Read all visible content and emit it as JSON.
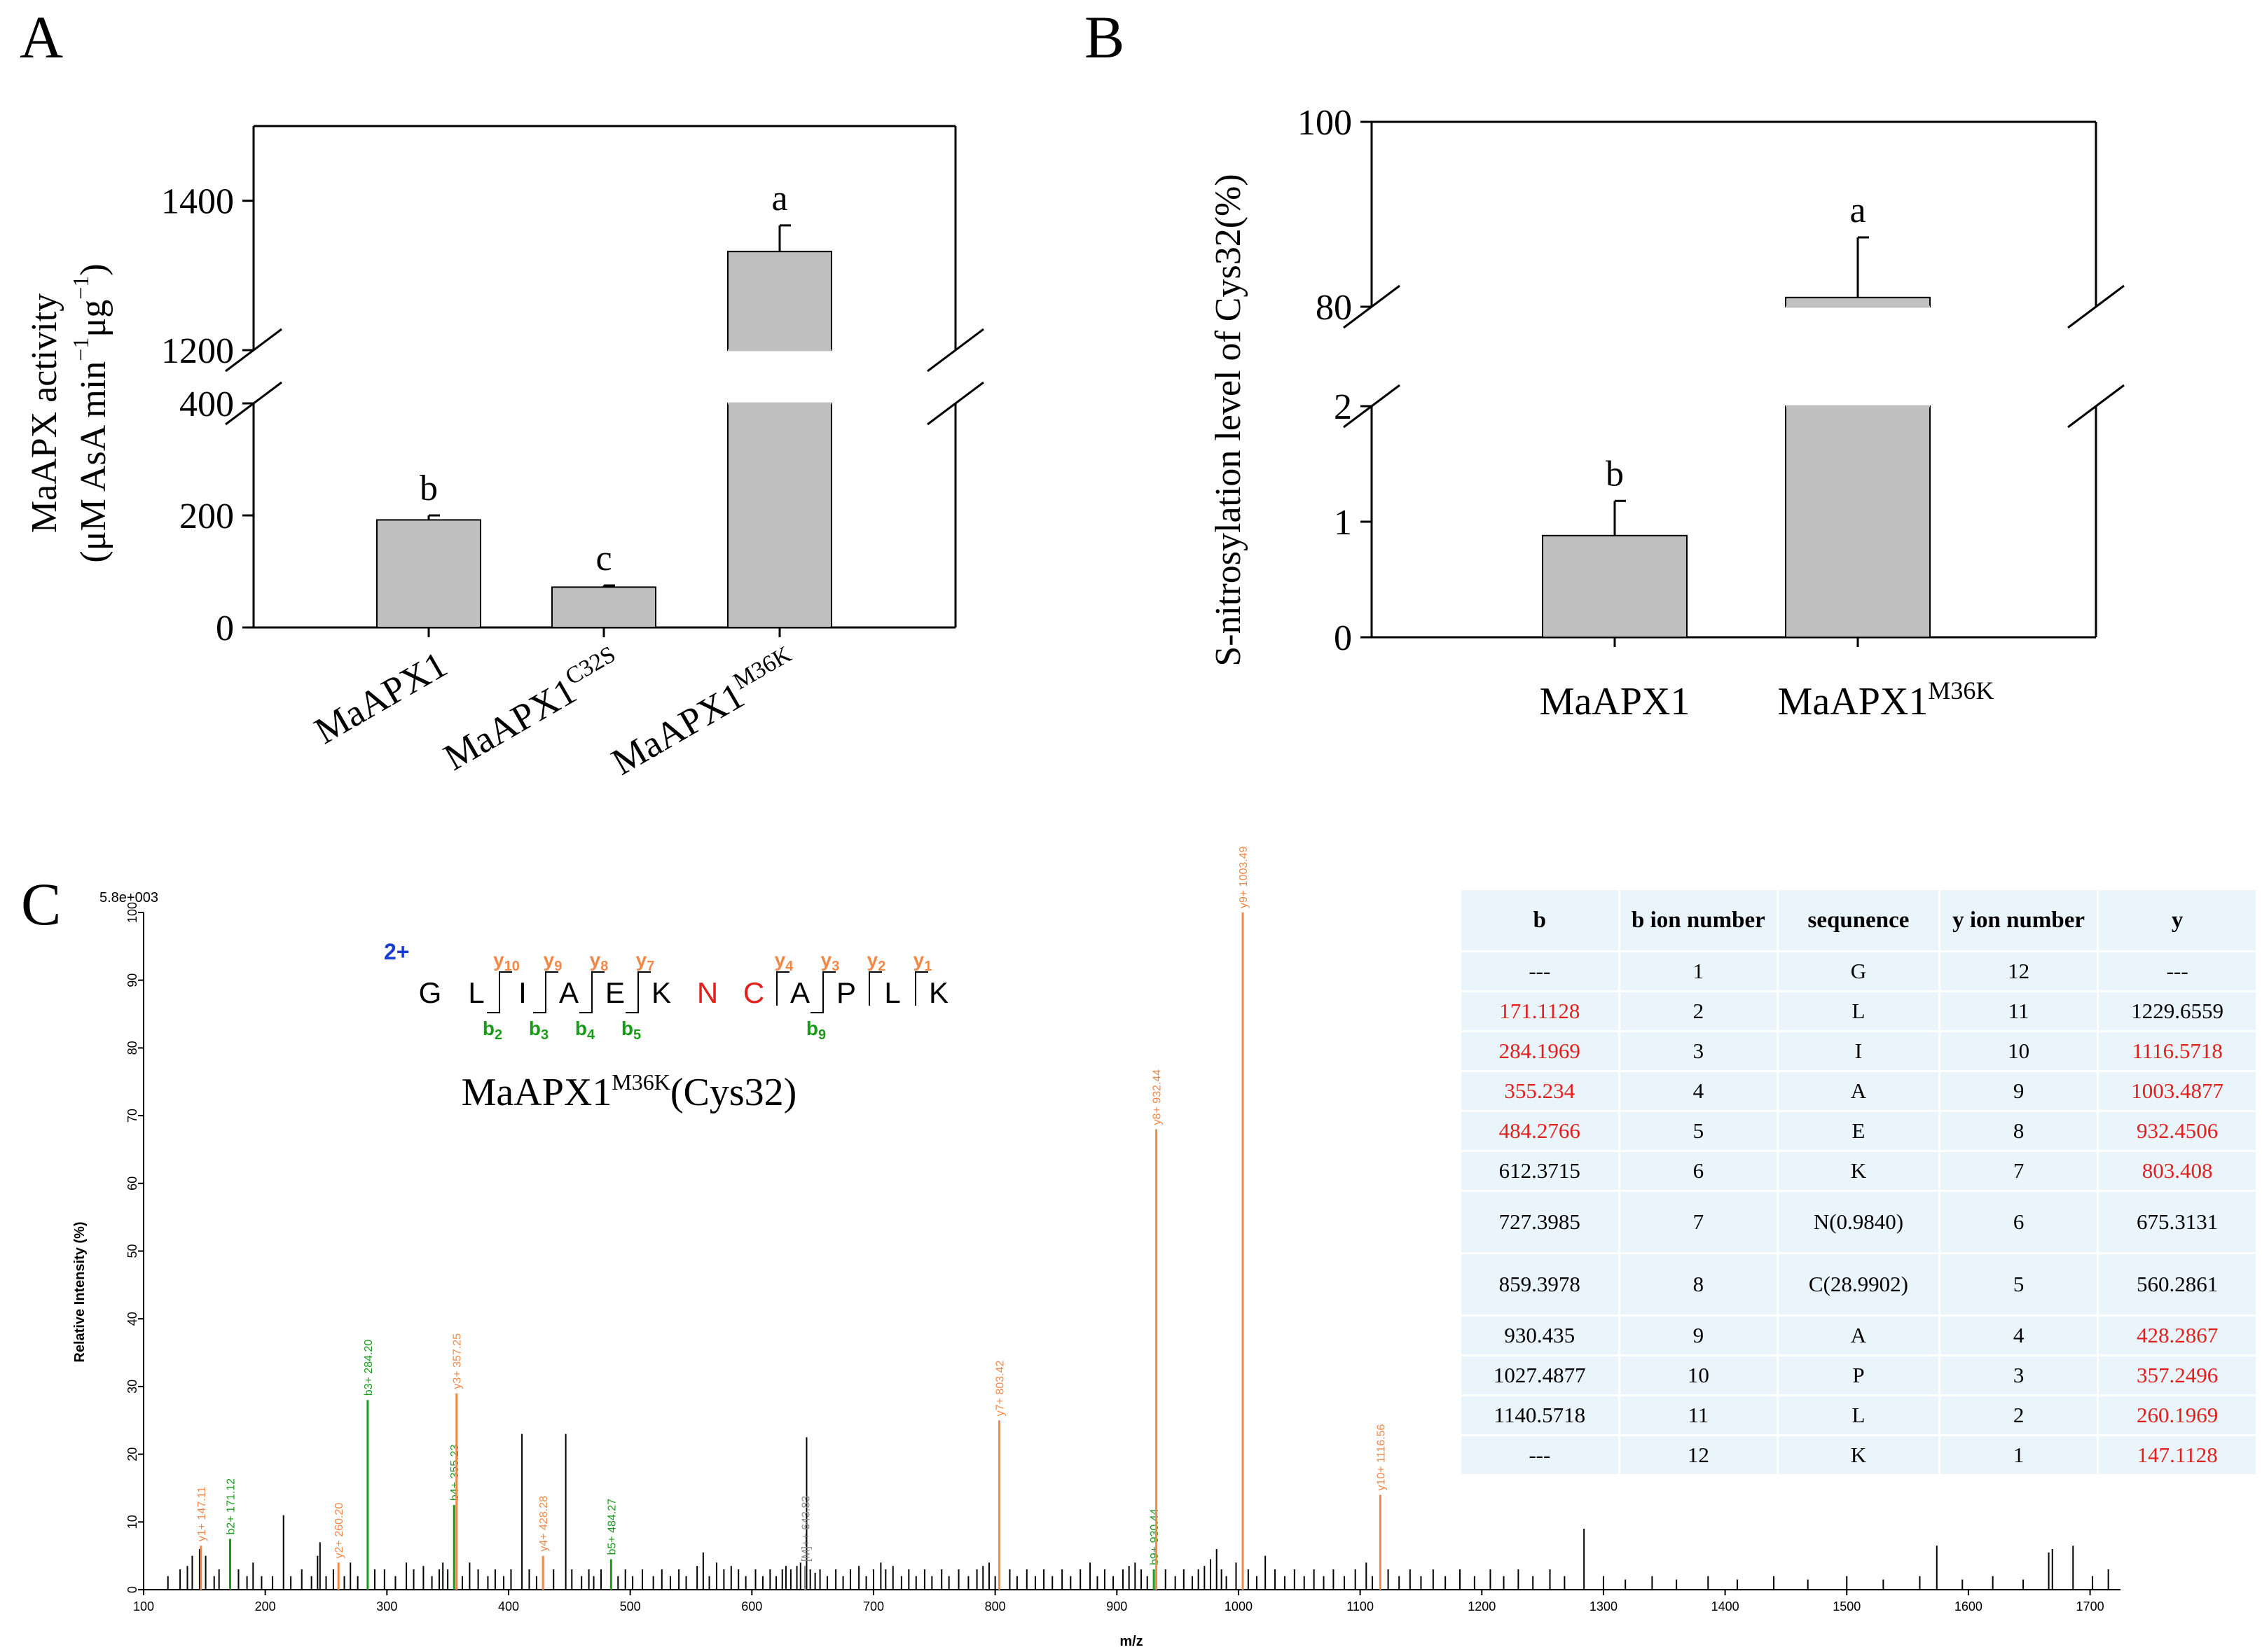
{
  "panel_labels": [
    "A",
    "B",
    "C"
  ],
  "colors": {
    "bar_fill": "#c0c0c0",
    "b_ion": "#1a9a1a",
    "y_ion": "#f0884a",
    "highlight": "#e0201c",
    "charge": "#1a3cd6",
    "table_bg": "#eaf5fb"
  },
  "chart_data": [
    {
      "id": "A",
      "type": "bar",
      "ylabel_line1": "MaAPX activity",
      "ylabel_line2_prefix": "(μM AsA min",
      "ylabel_sup1": "−1",
      "ylabel_mid": "μg",
      "ylabel_sup2": "−1",
      "ylabel_suffix": ")",
      "categories": [
        {
          "base": "MaAPX1",
          "sup": ""
        },
        {
          "base": "MaAPX1",
          "sup": "C32S"
        },
        {
          "base": "MaAPX1",
          "sup": "M36K"
        }
      ],
      "values": [
        192,
        72,
        1332
      ],
      "errors": [
        8,
        3,
        35
      ],
      "letters": [
        "b",
        "c",
        "a"
      ],
      "axis_break": {
        "lower": [
          0,
          400
        ],
        "upper": [
          1200,
          1500
        ]
      },
      "lower_ticks": [
        0,
        200,
        400
      ],
      "upper_ticks": [
        1200,
        1400
      ]
    },
    {
      "id": "B",
      "type": "bar",
      "ylabel": "S-nitrosylation level of Cys32(%)",
      "categories": [
        {
          "base": "MaAPX1",
          "sup": ""
        },
        {
          "base": "MaAPX1",
          "sup": "M36K"
        }
      ],
      "values": [
        0.88,
        81
      ],
      "errors": [
        0.3,
        6.5
      ],
      "letters": [
        "b",
        "a"
      ],
      "axis_break": {
        "lower": [
          0,
          2
        ],
        "upper": [
          80,
          100
        ]
      },
      "lower_ticks": [
        0,
        1,
        2
      ],
      "upper_ticks": [
        80,
        100
      ]
    },
    {
      "id": "C",
      "type": "spectrum",
      "xlabel": "m/z",
      "ylabel": "Relative   Intensity (%)",
      "max_label": "5.8e+003",
      "xlim": [
        100,
        1725
      ],
      "ylim": [
        0,
        100
      ],
      "x_ticks": [
        100,
        200,
        300,
        400,
        500,
        600,
        700,
        800,
        900,
        1000,
        1100,
        1200,
        1300,
        1400,
        1500,
        1600,
        1700
      ],
      "y_ticks": [
        0,
        10,
        20,
        30,
        40,
        50,
        60,
        70,
        80,
        90,
        100
      ],
      "peptide_title_base": "MaAPX1",
      "peptide_title_sup": "M36K",
      "peptide_title_suffix": "(Cys32)",
      "charge": "2+",
      "sequence": [
        "G",
        "L",
        "I",
        "A",
        "E",
        "K",
        "N",
        "C",
        "A",
        "P",
        "L",
        "K"
      ],
      "modified_residues": [
        6,
        7
      ],
      "y_marks": [
        {
          "n": "10",
          "after": 2
        },
        {
          "n": "9",
          "after": 3
        },
        {
          "n": "8",
          "after": 4
        },
        {
          "n": "7",
          "after": 5
        },
        {
          "n": "4",
          "after": 8
        },
        {
          "n": "3",
          "after": 9
        },
        {
          "n": "2",
          "after": 10
        },
        {
          "n": "1",
          "after": 11
        }
      ],
      "b_marks": [
        {
          "n": "2",
          "after": 2
        },
        {
          "n": "3",
          "after": 3
        },
        {
          "n": "4",
          "after": 4
        },
        {
          "n": "5",
          "after": 5
        },
        {
          "n": "9",
          "after": 9
        }
      ],
      "labeled_peaks": [
        {
          "mz": 147.11,
          "intensity": 6.5,
          "label": "y1+ 147.11",
          "kind": "y"
        },
        {
          "mz": 171.12,
          "intensity": 7.5,
          "label": "b2+ 171.12",
          "kind": "b"
        },
        {
          "mz": 260.2,
          "intensity": 4.0,
          "label": "y2+ 260.20",
          "kind": "y"
        },
        {
          "mz": 284.2,
          "intensity": 28.0,
          "label": "b3+ 284.20",
          "kind": "b"
        },
        {
          "mz": 355.23,
          "intensity": 12.5,
          "label": "b4+ 355.23",
          "kind": "b"
        },
        {
          "mz": 357.25,
          "intensity": 29.0,
          "label": "y3+ 357.25",
          "kind": "y"
        },
        {
          "mz": 428.28,
          "intensity": 5.0,
          "label": "y4+ 428.28",
          "kind": "y"
        },
        {
          "mz": 484.27,
          "intensity": 4.5,
          "label": "b5+ 484.27",
          "kind": "b"
        },
        {
          "mz": 643.83,
          "intensity": 3.5,
          "label": "[M]++ 643.83",
          "kind": "m"
        },
        {
          "mz": 803.42,
          "intensity": 25.0,
          "label": "y7+ 803.42",
          "kind": "y"
        },
        {
          "mz": 930.44,
          "intensity": 3.0,
          "label": "b9+ 930.44",
          "kind": "b"
        },
        {
          "mz": 932.44,
          "intensity": 68.0,
          "label": "y8+ 932.44",
          "kind": "y"
        },
        {
          "mz": 1003.49,
          "intensity": 100,
          "label": "y9+ 1003.49",
          "kind": "y"
        },
        {
          "mz": 1116.56,
          "intensity": 14.0,
          "label": "y10+ 1116.56",
          "kind": "y"
        }
      ],
      "other_peaks": [
        [
          120,
          2
        ],
        [
          130,
          3
        ],
        [
          136,
          3.5
        ],
        [
          140,
          5
        ],
        [
          146,
          6
        ],
        [
          151,
          5
        ],
        [
          158,
          2
        ],
        [
          162,
          3
        ],
        [
          178,
          3
        ],
        [
          185,
          2
        ],
        [
          190,
          4
        ],
        [
          197,
          2
        ],
        [
          206,
          2
        ],
        [
          215,
          11
        ],
        [
          221,
          2
        ],
        [
          230,
          3
        ],
        [
          238,
          2
        ],
        [
          243,
          5
        ],
        [
          245,
          7
        ],
        [
          250,
          2
        ],
        [
          256,
          3
        ],
        [
          265,
          2
        ],
        [
          270,
          4
        ],
        [
          276,
          2
        ],
        [
          290,
          3
        ],
        [
          298,
          3
        ],
        [
          307,
          2
        ],
        [
          316,
          4
        ],
        [
          322,
          3
        ],
        [
          330,
          3.5
        ],
        [
          337,
          2
        ],
        [
          343,
          3
        ],
        [
          346,
          4
        ],
        [
          350,
          3
        ],
        [
          362,
          2
        ],
        [
          368,
          4
        ],
        [
          375,
          3
        ],
        [
          383,
          2
        ],
        [
          389,
          3
        ],
        [
          396,
          2
        ],
        [
          402,
          3
        ],
        [
          411,
          23
        ],
        [
          417,
          3
        ],
        [
          423,
          2
        ],
        [
          437,
          3
        ],
        [
          447,
          23
        ],
        [
          452,
          3
        ],
        [
          460,
          2
        ],
        [
          466,
          3
        ],
        [
          470,
          2
        ],
        [
          476,
          3
        ],
        [
          490,
          2
        ],
        [
          496,
          3
        ],
        [
          502,
          2
        ],
        [
          510,
          3
        ],
        [
          519,
          2
        ],
        [
          526,
          3
        ],
        [
          533,
          2
        ],
        [
          540,
          3
        ],
        [
          546,
          2
        ],
        [
          555,
          3.5
        ],
        [
          560,
          5.5
        ],
        [
          565,
          2
        ],
        [
          571,
          4
        ],
        [
          577,
          3
        ],
        [
          583,
          3.5
        ],
        [
          589,
          3
        ],
        [
          595,
          2
        ],
        [
          603,
          3
        ],
        [
          609,
          2
        ],
        [
          615,
          3
        ],
        [
          620,
          2
        ],
        [
          625,
          3
        ],
        [
          628,
          3.5
        ],
        [
          632,
          3
        ],
        [
          637,
          3.5
        ],
        [
          640,
          4
        ],
        [
          645,
          22.5
        ],
        [
          648,
          3
        ],
        [
          652,
          2.5
        ],
        [
          656,
          3
        ],
        [
          662,
          2
        ],
        [
          669,
          3
        ],
        [
          675,
          2
        ],
        [
          681,
          3
        ],
        [
          688,
          3.5
        ],
        [
          694,
          2
        ],
        [
          700,
          3
        ],
        [
          706,
          4
        ],
        [
          710,
          3
        ],
        [
          716,
          3.5
        ],
        [
          723,
          2
        ],
        [
          729,
          3
        ],
        [
          735,
          2
        ],
        [
          742,
          3
        ],
        [
          748,
          2
        ],
        [
          756,
          3
        ],
        [
          762,
          2
        ],
        [
          770,
          3
        ],
        [
          778,
          2
        ],
        [
          785,
          3
        ],
        [
          790,
          3.5
        ],
        [
          795,
          4
        ],
        [
          800,
          2
        ],
        [
          812,
          3
        ],
        [
          818,
          2
        ],
        [
          826,
          3
        ],
        [
          833,
          2
        ],
        [
          840,
          3
        ],
        [
          847,
          2
        ],
        [
          855,
          3
        ],
        [
          862,
          2
        ],
        [
          870,
          3
        ],
        [
          878,
          4
        ],
        [
          884,
          2
        ],
        [
          890,
          3
        ],
        [
          897,
          2
        ],
        [
          905,
          3
        ],
        [
          910,
          3.5
        ],
        [
          915,
          4
        ],
        [
          920,
          3
        ],
        [
          925,
          2
        ],
        [
          940,
          3
        ],
        [
          948,
          2
        ],
        [
          955,
          3
        ],
        [
          962,
          2
        ],
        [
          967,
          3
        ],
        [
          972,
          3.5
        ],
        [
          977,
          4.5
        ],
        [
          982,
          6
        ],
        [
          986,
          3
        ],
        [
          990,
          2
        ],
        [
          998,
          4
        ],
        [
          1008,
          3
        ],
        [
          1015,
          2
        ],
        [
          1022,
          5
        ],
        [
          1030,
          3
        ],
        [
          1038,
          2
        ],
        [
          1046,
          3
        ],
        [
          1054,
          2
        ],
        [
          1062,
          3
        ],
        [
          1070,
          2
        ],
        [
          1078,
          3
        ],
        [
          1087,
          2
        ],
        [
          1096,
          3
        ],
        [
          1105,
          4
        ],
        [
          1110,
          2
        ],
        [
          1123,
          3
        ],
        [
          1132,
          2
        ],
        [
          1141,
          3
        ],
        [
          1150,
          2
        ],
        [
          1160,
          3
        ],
        [
          1170,
          2
        ],
        [
          1182,
          3
        ],
        [
          1194,
          2
        ],
        [
          1207,
          3
        ],
        [
          1218,
          2
        ],
        [
          1230,
          3
        ],
        [
          1242,
          2
        ],
        [
          1256,
          3
        ],
        [
          1268,
          2
        ],
        [
          1284,
          9
        ],
        [
          1300,
          2
        ],
        [
          1318,
          1.5
        ],
        [
          1340,
          2
        ],
        [
          1360,
          1.5
        ],
        [
          1386,
          2
        ],
        [
          1410,
          1.5
        ],
        [
          1440,
          2
        ],
        [
          1468,
          1.5
        ],
        [
          1500,
          2
        ],
        [
          1530,
          1.5
        ],
        [
          1560,
          2
        ],
        [
          1574,
          6.5
        ],
        [
          1595,
          1.5
        ],
        [
          1620,
          2
        ],
        [
          1645,
          1.5
        ],
        [
          1666,
          5.5
        ],
        [
          1669,
          6
        ],
        [
          1686,
          6.5
        ],
        [
          1702,
          2
        ],
        [
          1715,
          3
        ]
      ]
    }
  ],
  "ion_table": {
    "headers": {
      "b": "b",
      "b_num": "b ion number",
      "seq": "sequnence",
      "y_num": "y ion number",
      "y": "y"
    },
    "rows": [
      {
        "b": "---",
        "bnum": "1",
        "seq": "G",
        "ynum": "12",
        "y": "---",
        "b_hl": false,
        "y_hl": false,
        "tall": false
      },
      {
        "b": "171.1128",
        "bnum": "2",
        "seq": "L",
        "ynum": "11",
        "y": "1229.6559",
        "b_hl": true,
        "y_hl": false,
        "tall": false
      },
      {
        "b": "284.1969",
        "bnum": "3",
        "seq": "I",
        "ynum": "10",
        "y": "1116.5718",
        "b_hl": true,
        "y_hl": true,
        "tall": false
      },
      {
        "b": "355.234",
        "bnum": "4",
        "seq": "A",
        "ynum": "9",
        "y": "1003.4877",
        "b_hl": true,
        "y_hl": true,
        "tall": false
      },
      {
        "b": "484.2766",
        "bnum": "5",
        "seq": "E",
        "ynum": "8",
        "y": "932.4506",
        "b_hl": true,
        "y_hl": true,
        "tall": false
      },
      {
        "b": "612.3715",
        "bnum": "6",
        "seq": "K",
        "ynum": "7",
        "y": "803.408",
        "b_hl": false,
        "y_hl": true,
        "tall": false
      },
      {
        "b": "727.3985",
        "bnum": "7",
        "seq": "N(0.9840)",
        "ynum": "6",
        "y": "675.3131",
        "b_hl": false,
        "y_hl": false,
        "tall": true
      },
      {
        "b": "859.3978",
        "bnum": "8",
        "seq": "C(28.9902)",
        "ynum": "5",
        "y": "560.2861",
        "b_hl": false,
        "y_hl": false,
        "tall": true
      },
      {
        "b": "930.435",
        "bnum": "9",
        "seq": "A",
        "ynum": "4",
        "y": "428.2867",
        "b_hl": false,
        "y_hl": true,
        "tall": false
      },
      {
        "b": "1027.4877",
        "bnum": "10",
        "seq": "P",
        "ynum": "3",
        "y": "357.2496",
        "b_hl": false,
        "y_hl": true,
        "tall": false
      },
      {
        "b": "1140.5718",
        "bnum": "11",
        "seq": "L",
        "ynum": "2",
        "y": "260.1969",
        "b_hl": false,
        "y_hl": true,
        "tall": false
      },
      {
        "b": "---",
        "bnum": "12",
        "seq": "K",
        "ynum": "1",
        "y": "147.1128",
        "b_hl": false,
        "y_hl": true,
        "tall": false
      }
    ]
  }
}
